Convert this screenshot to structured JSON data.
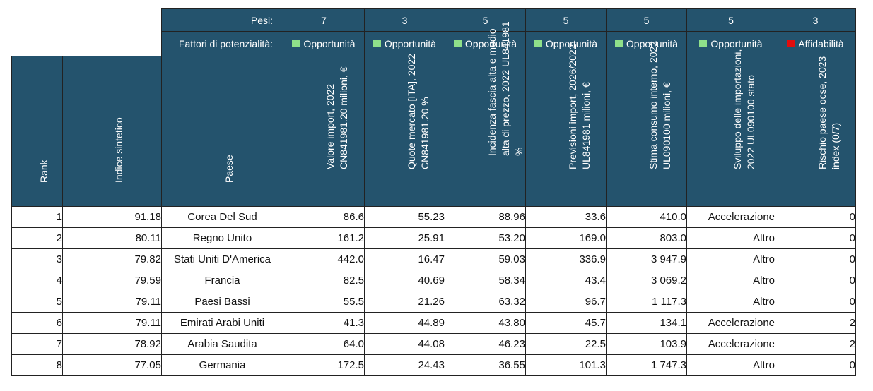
{
  "weights_label": "Pesi:",
  "factors_label": "Fattori di potenzialità:",
  "columns": [
    {
      "header": "Valore import, 2022 CN841981.20 milioni, €",
      "weight": "7",
      "factor": "Opportunità",
      "factor_color": "#8fe08a"
    },
    {
      "header": "Quote mercato [ITA], 2022 CN841981.20 %",
      "weight": "3",
      "factor": "Opportunità",
      "factor_color": "#8fe08a"
    },
    {
      "header": "Incidenza fascia alta e medio alta di prezzo, 2022 UL841981 %",
      "weight": "5",
      "factor": "Opportunità",
      "factor_color": "#8fe08a"
    },
    {
      "header": "Previsioni import, 2026/2022 UL841981 milioni, €",
      "weight": "5",
      "factor": "Opportunità",
      "factor_color": "#8fe08a"
    },
    {
      "header": "Stima consumo interno, 2022 UL090100 milioni, €",
      "weight": "5",
      "factor": "Opportunità",
      "factor_color": "#8fe08a"
    },
    {
      "header": "Sviluppo delle importazioni, 2022 UL090100 stato",
      "weight": "5",
      "factor": "Opportunità",
      "factor_color": "#8fe08a"
    },
    {
      "header": "Rischio paese ocse, 2023 index (0/7)",
      "weight": "3",
      "factor": "Affidabilità",
      "factor_color": "#e20d0d"
    }
  ],
  "fixed_headers": {
    "rank": "Rank",
    "index": "Indice sintetico",
    "country": "Paese"
  },
  "rows": [
    {
      "rank": "1",
      "index": "91.18",
      "country": "Corea Del Sud",
      "import_value": "86.6",
      "market_share": "55.23",
      "price_band": "88.96",
      "import_forecast": "33.6",
      "domestic_consumption": "410.0",
      "import_growth": "Accelerazione",
      "country_risk": "0"
    },
    {
      "rank": "2",
      "index": "80.11",
      "country": "Regno Unito",
      "import_value": "161.2",
      "market_share": "25.91",
      "price_band": "53.20",
      "import_forecast": "169.0",
      "domestic_consumption": "803.0",
      "import_growth": "Altro",
      "country_risk": "0"
    },
    {
      "rank": "3",
      "index": "79.82",
      "country": "Stati Uniti D'America",
      "import_value": "442.0",
      "market_share": "16.47",
      "price_band": "59.03",
      "import_forecast": "336.9",
      "domestic_consumption": "3 947.9",
      "import_growth": "Altro",
      "country_risk": "0"
    },
    {
      "rank": "4",
      "index": "79.59",
      "country": "Francia",
      "import_value": "82.5",
      "market_share": "40.69",
      "price_band": "58.34",
      "import_forecast": "43.4",
      "domestic_consumption": "3 069.2",
      "import_growth": "Altro",
      "country_risk": "0"
    },
    {
      "rank": "5",
      "index": "79.11",
      "country": "Paesi Bassi",
      "import_value": "55.5",
      "market_share": "21.26",
      "price_band": "63.32",
      "import_forecast": "96.7",
      "domestic_consumption": "1 117.3",
      "import_growth": "Altro",
      "country_risk": "0"
    },
    {
      "rank": "6",
      "index": "79.11",
      "country": "Emirati Arabi Uniti",
      "import_value": "41.3",
      "market_share": "44.89",
      "price_band": "43.80",
      "import_forecast": "45.7",
      "domestic_consumption": "134.1",
      "import_growth": "Accelerazione",
      "country_risk": "2"
    },
    {
      "rank": "7",
      "index": "78.92",
      "country": "Arabia Saudita",
      "import_value": "64.0",
      "market_share": "44.08",
      "price_band": "46.23",
      "import_forecast": "22.5",
      "domestic_consumption": "103.9",
      "import_growth": "Accelerazione",
      "country_risk": "2"
    },
    {
      "rank": "8",
      "index": "77.05",
      "country": "Germania",
      "import_value": "172.5",
      "market_share": "24.43",
      "price_band": "36.55",
      "import_forecast": "101.3",
      "domestic_consumption": "1 747.3",
      "import_growth": "Altro",
      "country_risk": "0"
    }
  ]
}
